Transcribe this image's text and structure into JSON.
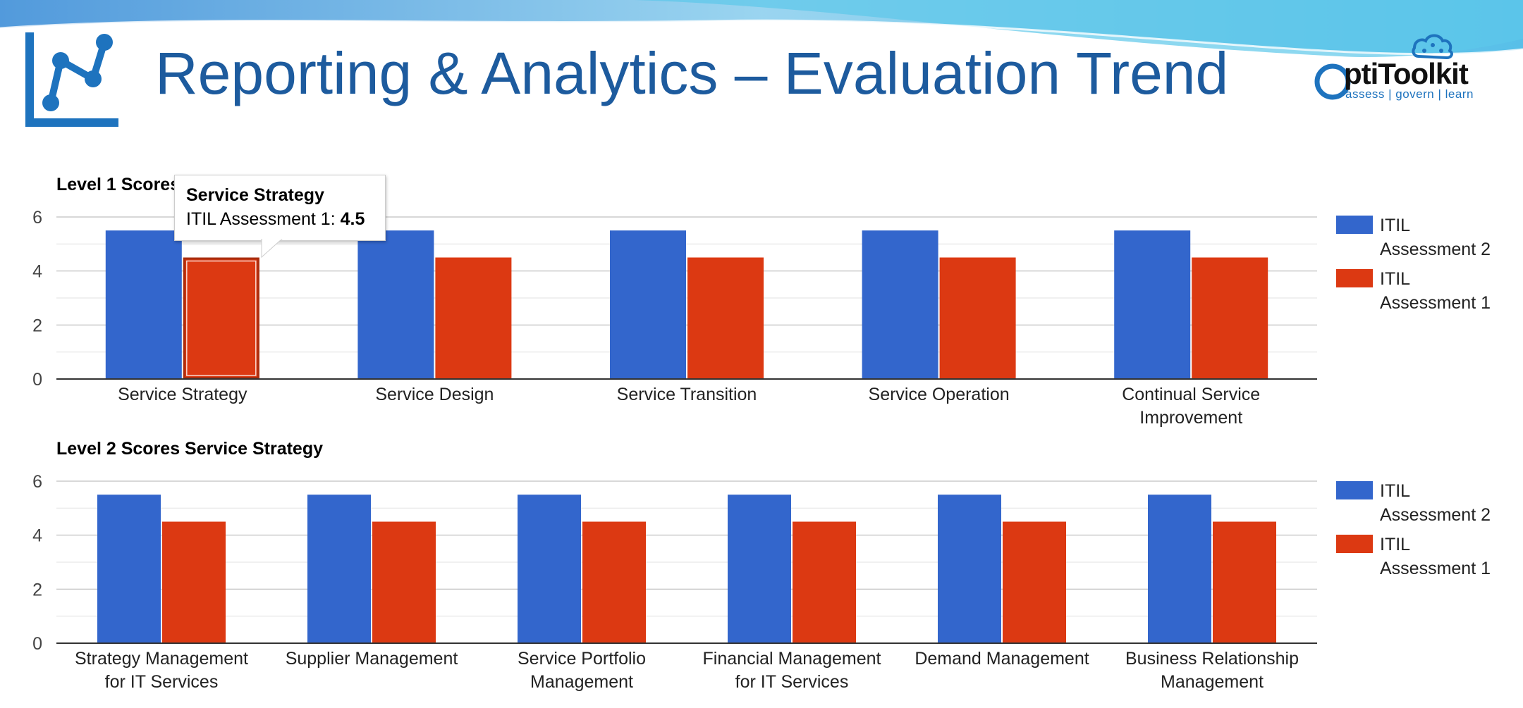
{
  "slide": {
    "title": "Reporting & Analytics – Evaluation Trend",
    "logo": {
      "name": "ptiToolkit",
      "tagline": "assess | govern | learn"
    },
    "colors": {
      "title": "#1d5b9e",
      "assessment2": "#3366cc",
      "assessment1": "#dc3912"
    }
  },
  "tooltip": {
    "title": "Service Strategy",
    "series": "ITIL Assessment 1",
    "value": "4.5"
  },
  "chart_data": [
    {
      "type": "bar",
      "title": "Level 1 Scores",
      "categories": [
        [
          "Service Strategy"
        ],
        [
          "Service Design"
        ],
        [
          "Service Transition"
        ],
        [
          "Service Operation"
        ],
        [
          "Continual Service",
          "Improvement"
        ]
      ],
      "series": [
        {
          "name": [
            "ITIL",
            "Assessment 2"
          ],
          "color": "#3366cc",
          "values": [
            5.5,
            5.5,
            5.5,
            5.5,
            5.5
          ]
        },
        {
          "name": [
            "ITIL",
            "Assessment 1"
          ],
          "color": "#dc3912",
          "values": [
            4.5,
            4.5,
            4.5,
            4.5,
            4.5
          ]
        }
      ],
      "ylim": [
        0,
        6
      ],
      "yticks": [
        "0",
        "2",
        "4",
        "6"
      ],
      "highlight": {
        "series": 1,
        "index": 0
      },
      "legend": "right",
      "grid": true
    },
    {
      "type": "bar",
      "title": "Level 2 Scores Service Strategy",
      "categories": [
        [
          "Strategy Management",
          "for IT Services"
        ],
        [
          "Supplier Management"
        ],
        [
          "Service Portfolio",
          "Management"
        ],
        [
          "Financial Management",
          "for IT Services"
        ],
        [
          "Demand Management"
        ],
        [
          "Business Relationship",
          "Management"
        ]
      ],
      "series": [
        {
          "name": [
            "ITIL",
            "Assessment 2"
          ],
          "color": "#3366cc",
          "values": [
            5.5,
            5.5,
            5.5,
            5.5,
            5.5,
            5.5
          ]
        },
        {
          "name": [
            "ITIL",
            "Assessment 1"
          ],
          "color": "#dc3912",
          "values": [
            4.5,
            4.5,
            4.5,
            4.5,
            4.5,
            4.5
          ]
        }
      ],
      "ylim": [
        0,
        6
      ],
      "yticks": [
        "0",
        "2",
        "4",
        "6"
      ],
      "legend": "right",
      "grid": true
    }
  ]
}
